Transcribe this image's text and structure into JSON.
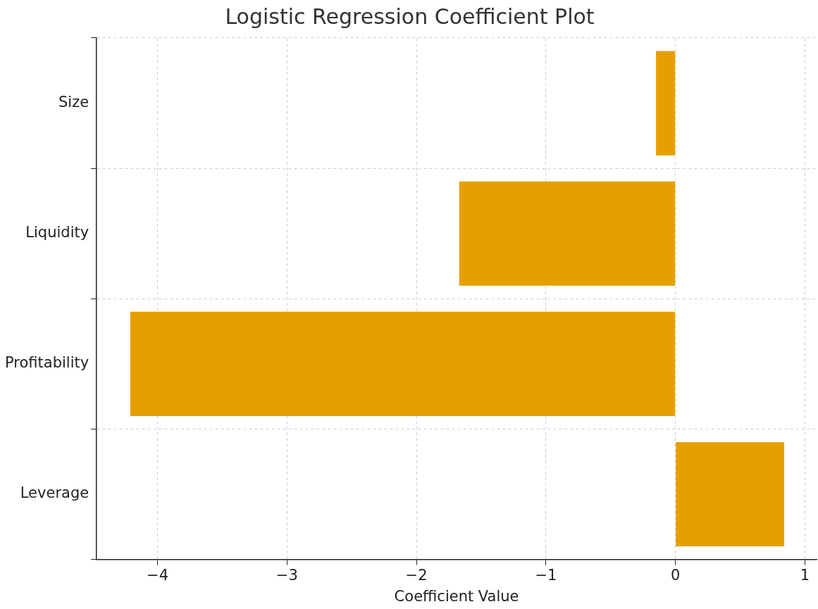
{
  "chart_data": {
    "type": "bar",
    "orientation": "horizontal",
    "title": "Logistic Regression Coefficient Plot",
    "xlabel": "Coefficient Value",
    "categories": [
      "Size",
      "Liquidity",
      "Profitability",
      "Leverage"
    ],
    "values": [
      -0.15,
      -1.67,
      -4.21,
      0.84
    ],
    "color": "#e5a000",
    "xlim": [
      -4.47,
      1.09
    ],
    "xticks": [
      {
        "value": -4,
        "label": "−4"
      },
      {
        "value": -3,
        "label": "−3"
      },
      {
        "value": -2,
        "label": "−2"
      },
      {
        "value": -1,
        "label": "−1"
      },
      0,
      1
    ],
    "grid": true,
    "legend": false
  }
}
